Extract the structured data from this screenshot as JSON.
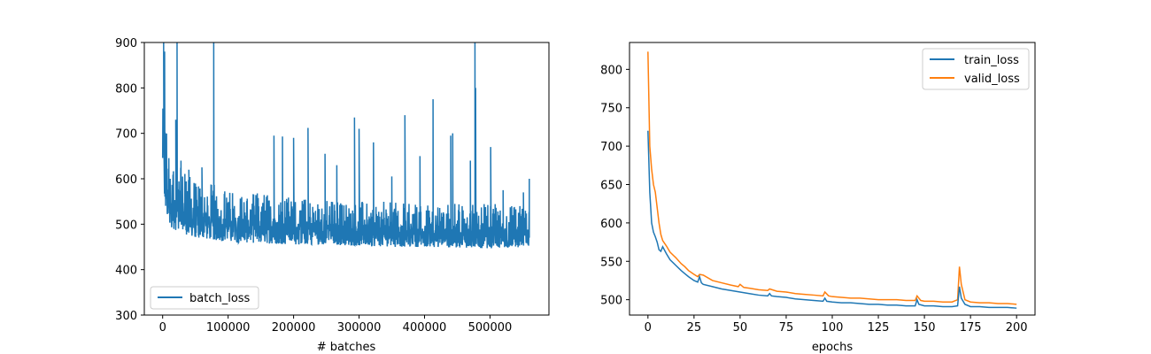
{
  "chart_data": [
    {
      "type": "line",
      "title": "",
      "xlabel": "# batches",
      "ylabel": "",
      "xlim": [
        -28000,
        590000
      ],
      "ylim": [
        300,
        900
      ],
      "xticks": [
        0,
        100000,
        200000,
        300000,
        400000,
        500000
      ],
      "xtick_labels": [
        "0",
        "100000",
        "200000",
        "300000",
        "400000",
        "500000"
      ],
      "yticks": [
        300,
        400,
        500,
        600,
        700,
        800,
        900
      ],
      "ytick_labels": [
        "300",
        "400",
        "500",
        "600",
        "700",
        "800",
        "900"
      ],
      "grid": false,
      "legend": "lower-left",
      "series": [
        {
          "name": "batch_loss",
          "color": "#1f77b4",
          "x_range": [
            0,
            560000
          ],
          "note_values": "noisy per-batch loss; envelope points (x, low, high) approximated",
          "envelope": [
            [
              0,
              600,
              900
            ],
            [
              3000,
              540,
              780
            ],
            [
              8000,
              500,
              680
            ],
            [
              15000,
              490,
              650
            ],
            [
              30000,
              480,
              620
            ],
            [
              50000,
              470,
              600
            ],
            [
              75000,
              465,
              590
            ],
            [
              100000,
              460,
              575
            ],
            [
              150000,
              458,
              570
            ],
            [
              200000,
              455,
              560
            ],
            [
              250000,
              455,
              555
            ],
            [
              300000,
              452,
              550
            ],
            [
              350000,
              450,
              550
            ],
            [
              400000,
              450,
              548
            ],
            [
              450000,
              448,
              545
            ],
            [
              500000,
              447,
              545
            ],
            [
              560000,
              450,
              540
            ]
          ],
          "spikes": [
            [
              1500,
              900
            ],
            [
              3000,
              880
            ],
            [
              20000,
              730
            ],
            [
              22000,
              900
            ],
            [
              28000,
              640
            ],
            [
              40000,
              620
            ],
            [
              60000,
              625
            ],
            [
              78000,
              900
            ],
            [
              170000,
              695
            ],
            [
              183000,
              693
            ],
            [
              200000,
              690
            ],
            [
              222000,
              712
            ],
            [
              248000,
              655
            ],
            [
              266000,
              630
            ],
            [
              293000,
              735
            ],
            [
              300000,
              710
            ],
            [
              322000,
              680
            ],
            [
              350000,
              605
            ],
            [
              370000,
              740
            ],
            [
              393000,
              650
            ],
            [
              413000,
              775
            ],
            [
              440000,
              695
            ],
            [
              443000,
              700
            ],
            [
              470000,
              640
            ],
            [
              477000,
              900
            ],
            [
              478000,
              800
            ],
            [
              501000,
              670
            ],
            [
              520000,
              575
            ],
            [
              551000,
              570
            ],
            [
              560000,
              600
            ]
          ]
        }
      ]
    },
    {
      "type": "line",
      "title": "",
      "xlabel": "epochs",
      "ylabel": "",
      "xlim": [
        -10,
        210
      ],
      "ylim": [
        480,
        835
      ],
      "xticks": [
        0,
        25,
        50,
        75,
        100,
        125,
        150,
        175,
        200
      ],
      "xtick_labels": [
        "0",
        "25",
        "50",
        "75",
        "100",
        "125",
        "150",
        "175",
        "200"
      ],
      "yticks": [
        500,
        550,
        600,
        650,
        700,
        750,
        800
      ],
      "ytick_labels": [
        "500",
        "550",
        "600",
        "650",
        "700",
        "750",
        "800"
      ],
      "grid": false,
      "legend": "top-right",
      "series": [
        {
          "name": "train_loss",
          "color": "#1f77b4",
          "points": [
            [
              0,
              720
            ],
            [
              1,
              640
            ],
            [
              2,
              600
            ],
            [
              3,
              588
            ],
            [
              4,
              582
            ],
            [
              5,
              575
            ],
            [
              6,
              565
            ],
            [
              7,
              563
            ],
            [
              8,
              569
            ],
            [
              10,
              560
            ],
            [
              12,
              552
            ],
            [
              15,
              545
            ],
            [
              18,
              538
            ],
            [
              20,
              534
            ],
            [
              22,
              530
            ],
            [
              25,
              525
            ],
            [
              27,
              523
            ],
            [
              28,
              530
            ],
            [
              29,
              522
            ],
            [
              30,
              520
            ],
            [
              35,
              517
            ],
            [
              40,
              514
            ],
            [
              45,
              512
            ],
            [
              50,
              510
            ],
            [
              55,
              508
            ],
            [
              60,
              506
            ],
            [
              65,
              505
            ],
            [
              66,
              508
            ],
            [
              67,
              505
            ],
            [
              70,
              504
            ],
            [
              75,
              503
            ],
            [
              80,
              501
            ],
            [
              85,
              500
            ],
            [
              90,
              499
            ],
            [
              95,
              498
            ],
            [
              96,
              502
            ],
            [
              97,
              498
            ],
            [
              100,
              497
            ],
            [
              105,
              496
            ],
            [
              110,
              496
            ],
            [
              115,
              495
            ],
            [
              120,
              494
            ],
            [
              125,
              494
            ],
            [
              130,
              493
            ],
            [
              135,
              493
            ],
            [
              140,
              492
            ],
            [
              145,
              492
            ],
            [
              146,
              500
            ],
            [
              147,
              494
            ],
            [
              150,
              492
            ],
            [
              155,
              492
            ],
            [
              160,
              491
            ],
            [
              165,
              491
            ],
            [
              168,
              492
            ],
            [
              169,
              517
            ],
            [
              170,
              502
            ],
            [
              172,
              494
            ],
            [
              175,
              491
            ],
            [
              180,
              491
            ],
            [
              185,
              490
            ],
            [
              190,
              490
            ],
            [
              195,
              490
            ],
            [
              200,
              489
            ]
          ]
        },
        {
          "name": "valid_loss",
          "color": "#ff7f0e",
          "points": [
            [
              0,
              823
            ],
            [
              1,
              700
            ],
            [
              2,
              670
            ],
            [
              3,
              650
            ],
            [
              4,
              640
            ],
            [
              5,
              620
            ],
            [
              6,
              600
            ],
            [
              7,
              585
            ],
            [
              8,
              577
            ],
            [
              10,
              570
            ],
            [
              12,
              562
            ],
            [
              15,
              555
            ],
            [
              18,
              547
            ],
            [
              20,
              543
            ],
            [
              22,
              538
            ],
            [
              25,
              533
            ],
            [
              27,
              530
            ],
            [
              28,
              533
            ],
            [
              30,
              532
            ],
            [
              35,
              525
            ],
            [
              40,
              522
            ],
            [
              45,
              519
            ],
            [
              49,
              517
            ],
            [
              50,
              520
            ],
            [
              52,
              516
            ],
            [
              55,
              515
            ],
            [
              60,
              513
            ],
            [
              65,
              512
            ],
            [
              66,
              514
            ],
            [
              70,
              511
            ],
            [
              75,
              510
            ],
            [
              80,
              508
            ],
            [
              85,
              507
            ],
            [
              90,
              506
            ],
            [
              95,
              505
            ],
            [
              96,
              510
            ],
            [
              98,
              505
            ],
            [
              100,
              504
            ],
            [
              105,
              503
            ],
            [
              110,
              502
            ],
            [
              115,
              502
            ],
            [
              120,
              501
            ],
            [
              125,
              500
            ],
            [
              130,
              500
            ],
            [
              135,
              500
            ],
            [
              140,
              499
            ],
            [
              145,
              499
            ],
            [
              146,
              505
            ],
            [
              148,
              499
            ],
            [
              150,
              498
            ],
            [
              155,
              498
            ],
            [
              160,
              497
            ],
            [
              165,
              497
            ],
            [
              168,
              500
            ],
            [
              169,
              543
            ],
            [
              170,
              520
            ],
            [
              172,
              500
            ],
            [
              175,
              497
            ],
            [
              180,
              496
            ],
            [
              185,
              496
            ],
            [
              190,
              495
            ],
            [
              195,
              495
            ],
            [
              200,
              494
            ]
          ]
        }
      ]
    }
  ]
}
